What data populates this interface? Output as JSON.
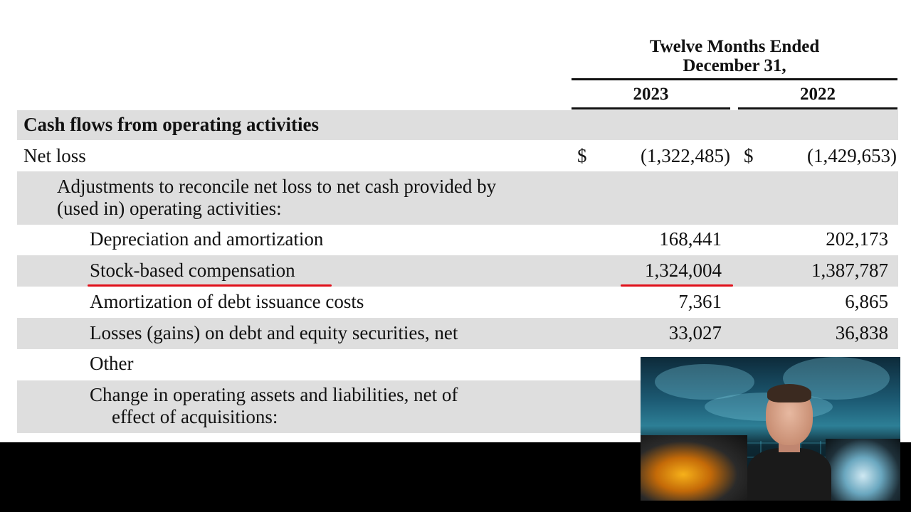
{
  "header": {
    "period_line1": "Twelve Months Ended",
    "period_line2": "December 31,",
    "year1": "2023",
    "year2": "2022"
  },
  "rows": [
    {
      "label": "Cash flows from operating activities"
    },
    {
      "label": "Net loss",
      "dollar1": "$",
      "v2023": "(1,322,485)",
      "dollar2": "$",
      "v2022": "(1,429,653)"
    },
    {
      "label_line1": "Adjustments to reconcile net loss to net cash provided by",
      "label_line2": "(used in) operating activities:"
    },
    {
      "label": "Depreciation and amortization",
      "v2023": "168,441",
      "v2022": "202,173"
    },
    {
      "label": "Stock-based compensation",
      "v2023": "1,324,004",
      "v2022": "1,387,787"
    },
    {
      "label": "Amortization of debt issuance costs",
      "v2023": "7,361",
      "v2022": "6,865"
    },
    {
      "label": "Losses (gains) on debt and equity securities, net",
      "v2023": "33,027",
      "v2022": "36,838"
    },
    {
      "label": "Other"
    },
    {
      "label_line1": "Change in operating assets and liabilities, net of",
      "label_line2": "effect of acquisitions:"
    }
  ],
  "highlight_color": "#e0101a",
  "band_color": "#dedede",
  "webcam": {
    "icon": "presenter-webcam-icon"
  }
}
